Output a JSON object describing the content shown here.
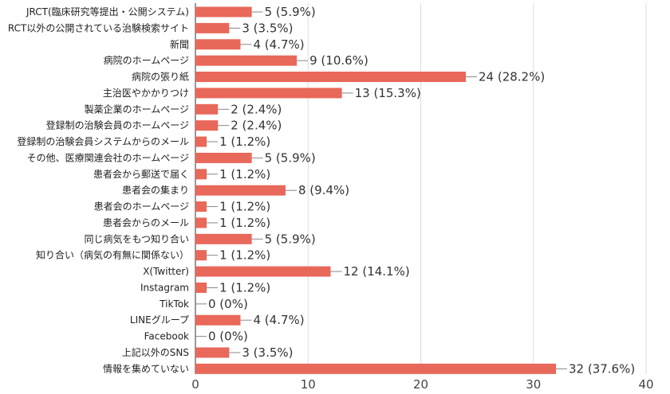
{
  "chart_data": {
    "type": "bar",
    "orientation": "horizontal",
    "title": "",
    "xlabel": "",
    "ylabel": "",
    "xlim": [
      0,
      40
    ],
    "xticks": [
      0,
      10,
      20,
      30,
      40
    ],
    "grid": true,
    "bar_color": "#e8685a",
    "categories": [
      "JRCT(臨床研究等提出・公開システム)",
      "RCT以外の公開されている治験検索サイト",
      "新聞",
      "病院のホームページ",
      "病院の張り紙",
      "主治医やかかりつけ",
      "製薬企業のホームページ",
      "登録制の治験会員のホームページ",
      "登録制の治験会員システムからのメール",
      "その他、医療関連会社のホームページ",
      "患者会から郵送で届く",
      "患者会の集まり",
      "患者会のホームページ",
      "患者会からのメール",
      "同じ病気をもつ知り合い",
      "知り合い（病気の有無に関係ない）",
      "X(Twitter)",
      "Instagram",
      "TikTok",
      "LINEグループ",
      "Facebook",
      "上記以外のSNS",
      "情報を集めていない"
    ],
    "values": [
      5,
      3,
      4,
      9,
      24,
      13,
      2,
      2,
      1,
      5,
      1,
      8,
      1,
      1,
      5,
      1,
      12,
      1,
      0,
      4,
      0,
      3,
      32
    ],
    "data_labels": [
      "5 (5.9%)",
      "3 (3.5%)",
      "4 (4.7%)",
      "9 (10.6%)",
      "24 (28.2%)",
      "13 (15.3%)",
      "2 (2.4%)",
      "2 (2.4%)",
      "1 (1.2%)",
      "5 (5.9%)",
      "1 (1.2%)",
      "8 (9.4%)",
      "1 (1.2%)",
      "1 (1.2%)",
      "5 (5.9%)",
      "1 (1.2%)",
      "12 (14.1%)",
      "1 (1.2%)",
      "0 (0%)",
      "4 (4.7%)",
      "0 (0%)",
      "3 (3.5%)",
      "32 (37.6%)"
    ]
  }
}
